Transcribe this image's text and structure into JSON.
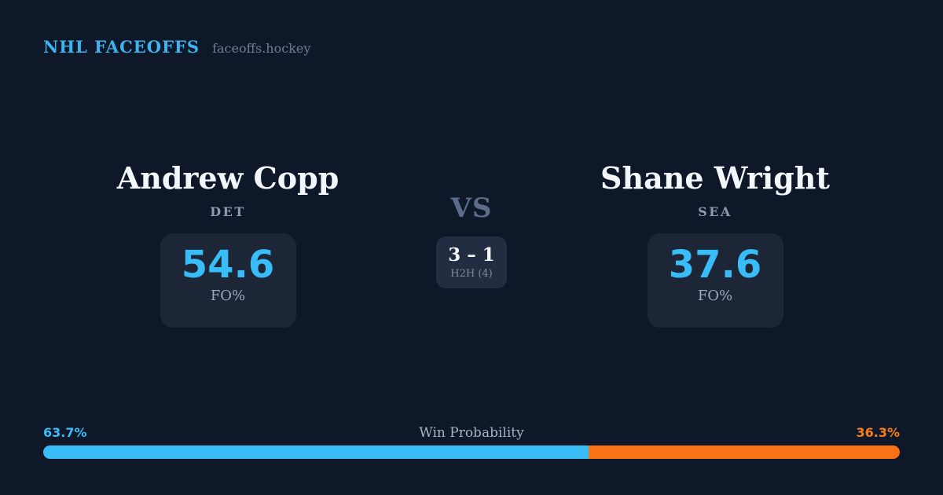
{
  "theme": {
    "background": "#0f1828",
    "card_background": "#1d2636",
    "h2h_card_background": "#222d42",
    "accent_blue": "#38bdf8",
    "accent_orange": "#f97316",
    "muted_text": "#8e9cb3",
    "name_text": "#f3f6fb"
  },
  "header": {
    "brand": "NHL FACEOFFS",
    "domain": "faceoffs.hockey"
  },
  "matchup": {
    "vs_label": "VS",
    "h2h": {
      "score": "3 – 1",
      "label": "H2H (4)"
    },
    "players": [
      {
        "name": "Andrew Copp",
        "team": "DET",
        "fo_pct": "54.6",
        "stat_label": "FO%"
      },
      {
        "name": "Shane Wright",
        "team": "SEA",
        "fo_pct": "37.6",
        "stat_label": "FO%"
      }
    ]
  },
  "win_probability": {
    "label": "Win Probability",
    "left_pct_text": "63.7%",
    "right_pct_text": "36.3%",
    "left_value": 63.7,
    "right_value": 36.3
  }
}
